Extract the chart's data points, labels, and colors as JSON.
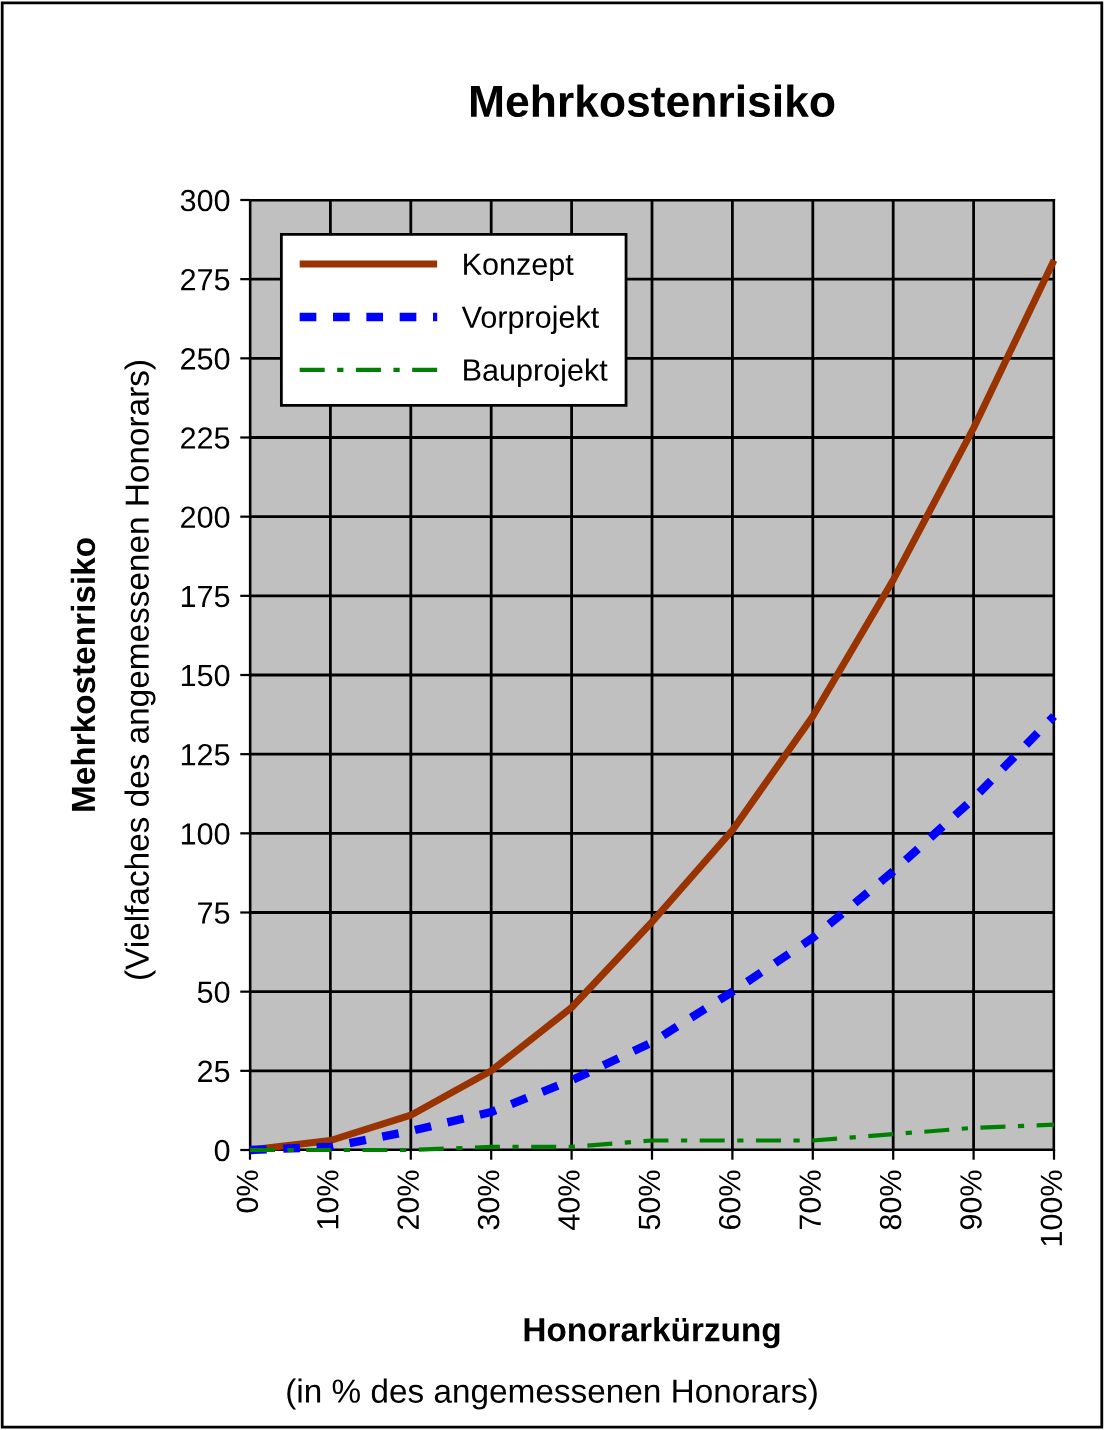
{
  "chart_data": {
    "type": "line",
    "title": "Mehrkostenrisiko",
    "xlabel": "Honorarkürzung",
    "ylabel": "Mehrkostenrisiko",
    "annotations": [
      "(in % des angemessenen Honorars)",
      "(Vielfaches des angemessenen Honorars)"
    ],
    "x": [
      0,
      10,
      20,
      30,
      40,
      50,
      60,
      70,
      80,
      90,
      100
    ],
    "series": [
      {
        "name": "Konzept",
        "color": "#993300",
        "line_style": "solid",
        "values": [
          0,
          3,
          11,
          25,
          45,
          72,
          101,
          137,
          180,
          228,
          281
        ]
      },
      {
        "name": "Vorprojekt",
        "color": "#0000ff",
        "line_style": "dotted",
        "values": [
          0,
          1,
          6,
          12,
          22,
          34,
          50,
          67,
          88,
          111,
          137
        ]
      },
      {
        "name": "Bauprojekt",
        "color": "#008000",
        "line_style": "dashdot",
        "values": [
          0,
          0,
          0,
          1,
          1,
          3,
          3,
          3,
          5,
          7,
          8
        ]
      }
    ],
    "xlim": [
      0,
      100
    ],
    "xticks": [
      {
        "value": 0,
        "label": "0%"
      },
      {
        "value": 10,
        "label": "10%"
      },
      {
        "value": 20,
        "label": "20%"
      },
      {
        "value": 30,
        "label": "30%"
      },
      {
        "value": 40,
        "label": "40%"
      },
      {
        "value": 50,
        "label": "50%"
      },
      {
        "value": 60,
        "label": "60%"
      },
      {
        "value": 70,
        "label": "70%"
      },
      {
        "value": 80,
        "label": "80%"
      },
      {
        "value": 90,
        "label": "90%"
      },
      {
        "value": 100,
        "label": "100%"
      }
    ],
    "ylim": [
      0,
      300
    ],
    "yticks": [
      0,
      25,
      50,
      75,
      100,
      125,
      150,
      175,
      200,
      225,
      250,
      275,
      300
    ],
    "grid": true,
    "legend": "top left",
    "marker": "none"
  }
}
